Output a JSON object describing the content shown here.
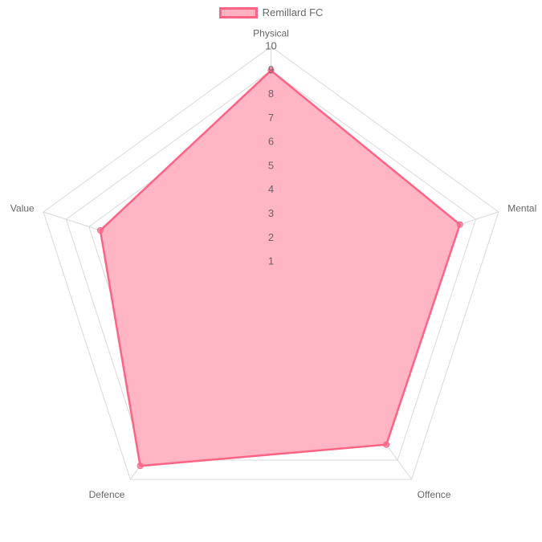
{
  "chart_data": {
    "type": "radar",
    "title": "",
    "labels": [
      "Physical",
      "Mental",
      "Offence",
      "Defence",
      "Value"
    ],
    "r_min": 0,
    "r_max": 10,
    "ticks": [
      "1",
      "2",
      "3",
      "4",
      "5",
      "6",
      "7",
      "8",
      "9",
      "10"
    ],
    "grid": true,
    "legend_position": "top",
    "series": [
      {
        "name": "Remillard FC",
        "values": [
          9,
          8.3,
          8.2,
          9.3,
          7.5
        ],
        "fill_color": "#ffb1c1",
        "border_color": "#ff6384"
      }
    ]
  }
}
